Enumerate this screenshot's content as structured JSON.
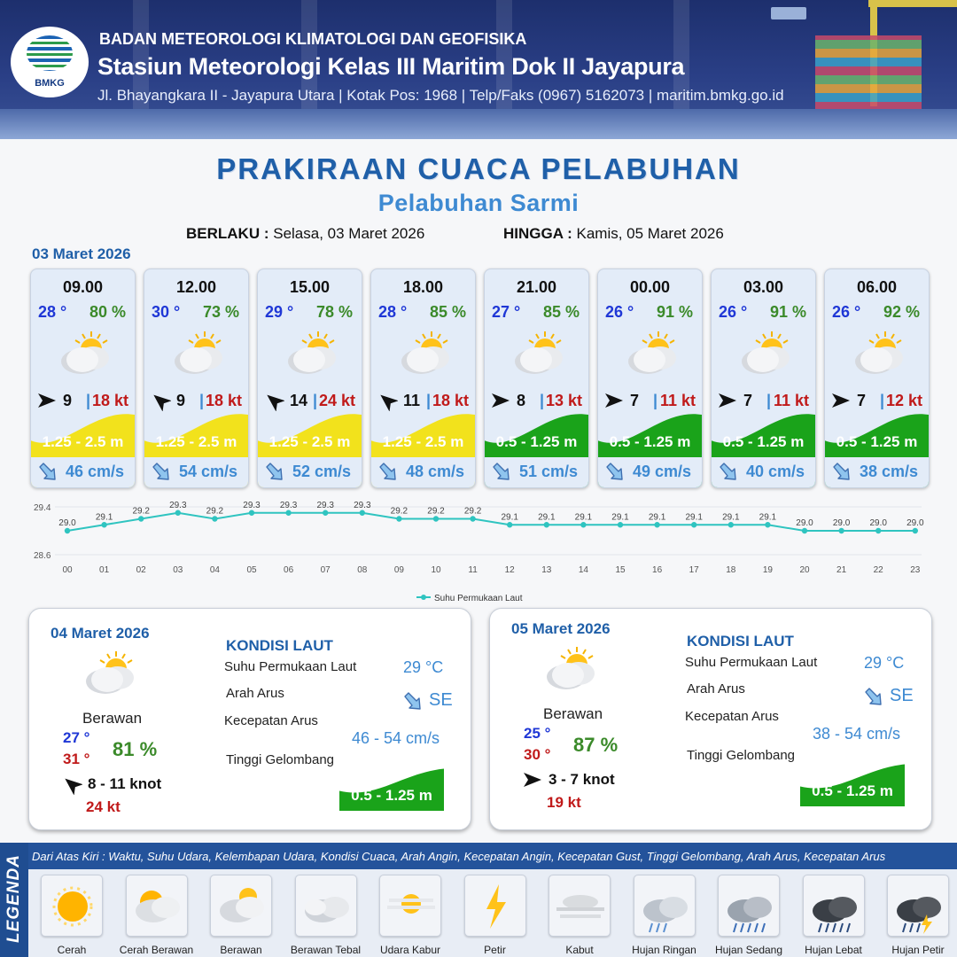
{
  "header": {
    "logo_text": "BMKG",
    "org": "BADAN METEOROLOGI KLIMATOLOGI DAN GEOFISIKA",
    "station": "Stasiun Meteorologi Kelas III Maritim Dok II Jayapura",
    "address": "Jl. Bhayangkara II - Jayapura Utara | Kotak Pos: 1968 | Telp/Faks (0967) 5162073 | maritim.bmkg.go.id"
  },
  "title": "PRAKIRAAN CUACA PELABUHAN",
  "subtitle": "Pelabuhan Sarmi",
  "validity": {
    "from_label": "BERLAKU :",
    "from_value": "Selasa, 03 Maret 2026",
    "to_label": "HINGGA :",
    "to_value": "Kamis, 05 Maret 2026"
  },
  "day1_date": "03 Maret 2026",
  "forecasts": [
    {
      "time": "09.00",
      "temp": "28 °",
      "hum": "80 %",
      "wind": "9",
      "sep": "|",
      "gust": "18 kt",
      "wave": "1.25 - 2.5 m",
      "current": "46 cm/s",
      "wave_color": "#f2e21c",
      "condition_icon": "cerah-berawan-icon"
    },
    {
      "time": "12.00",
      "temp": "30 °",
      "hum": "73 %",
      "wind": "9",
      "sep": "|",
      "gust": "18 kt",
      "wave": "1.25 - 2.5 m",
      "current": "54 cm/s",
      "wave_color": "#f2e21c",
      "condition_icon": "cerah-berawan-icon"
    },
    {
      "time": "15.00",
      "temp": "29 °",
      "hum": "78 %",
      "wind": "14",
      "sep": "|",
      "gust": "24 kt",
      "wave": "1.25 - 2.5 m",
      "current": "52 cm/s",
      "wave_color": "#f2e21c",
      "condition_icon": "cerah-berawan-icon"
    },
    {
      "time": "18.00",
      "temp": "28 °",
      "hum": "85 %",
      "wind": "11",
      "sep": "|",
      "gust": "18 kt",
      "wave": "1.25 - 2.5 m",
      "current": "48 cm/s",
      "wave_color": "#f2e21c",
      "condition_icon": "cerah-berawan-icon"
    },
    {
      "time": "21.00",
      "temp": "27 °",
      "hum": "85 %",
      "wind": "8",
      "sep": "|",
      "gust": "13 kt",
      "wave": "0.5 - 1.25 m",
      "current": "51 cm/s",
      "wave_color": "#1aa31a",
      "condition_icon": "cerah-berawan-icon"
    },
    {
      "time": "00.00",
      "temp": "26 °",
      "hum": "91 %",
      "wind": "7",
      "sep": "|",
      "gust": "11 kt",
      "wave": "0.5 - 1.25 m",
      "current": "49 cm/s",
      "wave_color": "#1aa31a",
      "condition_icon": "cerah-berawan-icon"
    },
    {
      "time": "03.00",
      "temp": "26 °",
      "hum": "91 %",
      "wind": "7",
      "sep": "|",
      "gust": "11 kt",
      "wave": "0.5 - 1.25 m",
      "current": "40 cm/s",
      "wave_color": "#1aa31a",
      "condition_icon": "cerah-berawan-icon"
    },
    {
      "time": "06.00",
      "temp": "26 °",
      "hum": "92 %",
      "wind": "7",
      "sep": "|",
      "gust": "12 kt",
      "wave": "0.5 - 1.25 m",
      "current": "38 cm/s",
      "wave_color": "#1aa31a",
      "condition_icon": "cerah-berawan-icon"
    }
  ],
  "chart_data": {
    "type": "line",
    "series": [
      {
        "name": "Suhu Permukaan Laut",
        "x": [
          "00",
          "01",
          "02",
          "03",
          "04",
          "05",
          "06",
          "07",
          "08",
          "09",
          "10",
          "11",
          "12",
          "13",
          "14",
          "15",
          "16",
          "17",
          "18",
          "19",
          "20",
          "21",
          "22",
          "23"
        ],
        "values": [
          29.0,
          29.1,
          29.2,
          29.3,
          29.2,
          29.3,
          29.3,
          29.3,
          29.3,
          29.2,
          29.2,
          29.2,
          29.1,
          29.1,
          29.1,
          29.1,
          29.1,
          29.1,
          29.1,
          29.1,
          29.0,
          29.0,
          29.0,
          29.0
        ],
        "labels": [
          "29.0",
          "29.1",
          "29.2",
          "29.3",
          "29.2",
          "29.3",
          "29.3",
          "29.3",
          "29.3",
          "29.2",
          "29.2",
          "29.2",
          "29.1",
          "29.1",
          "29.1",
          "29.1",
          "29.1",
          "29.1",
          "29.1",
          "29.1",
          "29.0",
          "29.0",
          "29.0",
          "29.0"
        ],
        "color": "#2fc4c0"
      }
    ],
    "y_ticks": [
      "29.4",
      "28.6"
    ],
    "ylim": [
      28.6,
      29.4
    ],
    "legend_position": "bottom"
  },
  "days": [
    {
      "date": "04 Maret 2026",
      "kondisi_title": "KONDISI LAUT",
      "condition": "Berawan",
      "tmin": "27 °",
      "tmax": "31 °",
      "hum": "81 %",
      "wind": "8  - 11 knot",
      "gust": "24 kt",
      "sst_label": "Suhu Permukaan Laut",
      "sst": "29 °C",
      "dir_label": "Arah Arus",
      "dir": "SE",
      "speed_label": "Kecepatan Arus",
      "speed": "46 - 54 cm/s",
      "wave_label": "Tinggi Gelombang",
      "wave": "0.5 - 1.25 m"
    },
    {
      "date": "05 Maret 2026",
      "kondisi_title": "KONDISI LAUT",
      "condition": "Berawan",
      "tmin": "25 °",
      "tmax": "30 °",
      "hum": "87 %",
      "wind": "3  - 7 knot",
      "gust": "19 kt",
      "sst_label": "Suhu Permukaan Laut",
      "sst": "29 °C",
      "dir_label": "Arah Arus",
      "dir": "SE",
      "speed_label": "Kecepatan Arus",
      "speed": "38  - 54 cm/s",
      "wave_label": "Tinggi Gelombang",
      "wave": "0.5 - 1.25 m"
    }
  ],
  "legend": {
    "title": "LEGENDA",
    "description": "Dari Atas Kiri : Waktu, Suhu Udara, Kelembapan Udara, Kondisi Cuaca, Arah Angin, Kecepatan Angin, Kecepatan Gust, Tinggi Gelombang, Arah Arus, Kecepatan Arus",
    "items": [
      {
        "label": "Cerah",
        "icon": "sun-icon"
      },
      {
        "label": "Cerah Berawan",
        "icon": "sun-cloud-icon"
      },
      {
        "label": "Berawan",
        "icon": "cloud-sun-icon"
      },
      {
        "label": "Berawan Tebal",
        "icon": "thick-cloud-icon"
      },
      {
        "label": "Udara Kabur",
        "icon": "haze-icon"
      },
      {
        "label": "Petir",
        "icon": "lightning-icon"
      },
      {
        "label": "Kabut",
        "icon": "fog-icon"
      },
      {
        "label": "Hujan Ringan",
        "icon": "light-rain-icon"
      },
      {
        "label": "Hujan Sedang",
        "icon": "moderate-rain-icon"
      },
      {
        "label": "Hujan Lebat",
        "icon": "heavy-rain-icon"
      },
      {
        "label": "Hujan Petir",
        "icon": "thunderstorm-icon"
      }
    ]
  }
}
